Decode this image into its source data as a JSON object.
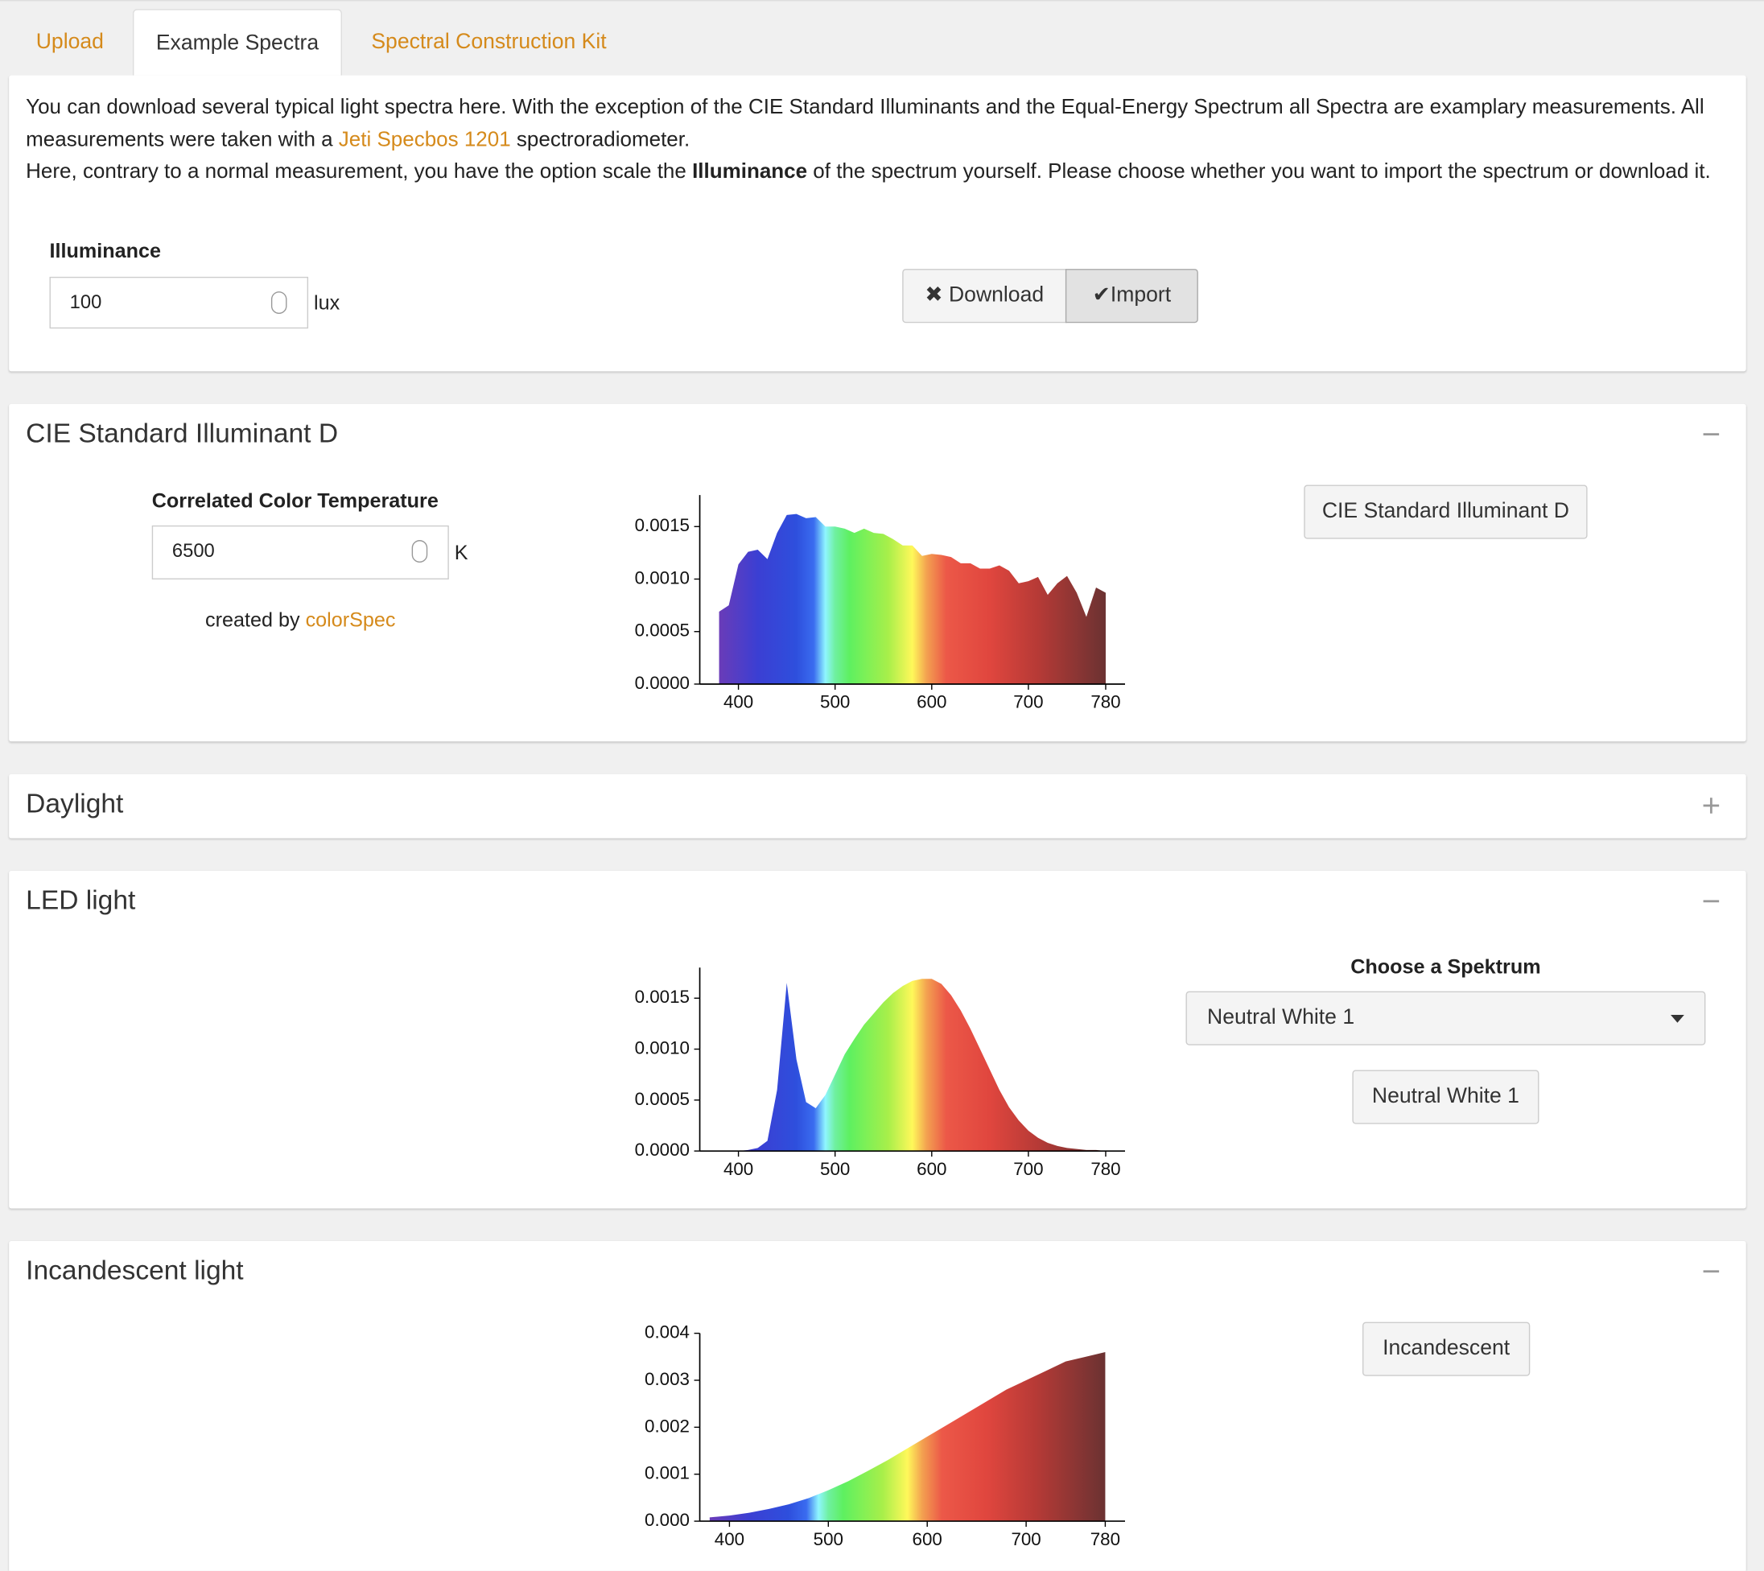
{
  "tabs": [
    "Upload",
    "Example Spectra",
    "Spectral Construction Kit"
  ],
  "intro": {
    "p1a": "You can download several typical light spectra here. With the exception of the CIE Standard Illuminants and the Equal-Energy Spectrum all Spectra are examplary measurements. All measurements were taken with a ",
    "link": "Jeti Specbos 1201",
    "p1b": " spectroradiometer.",
    "p2a": "Here, contrary to a normal measurement, you have the option scale the ",
    "bold": "Illuminance",
    "p2b": " of the spectrum yourself. Please choose whether you want to import the spectrum or download it."
  },
  "illuminance": {
    "label": "Illuminance",
    "value": "100",
    "unit": "lux"
  },
  "buttons": [
    "Download",
    "Import"
  ],
  "panels": [
    {
      "title": "CIE Standard Illuminant D",
      "cct_label": "Correlated Color Temperature",
      "cct_value": "6500",
      "cct_unit": "K",
      "credit": "created by",
      "credit_link": "colorSpec",
      "button": "CIE Standard Illuminant D",
      "chart_data": {
        "type": "area",
        "x": [
          380,
          390,
          400,
          410,
          420,
          430,
          440,
          450,
          460,
          470,
          480,
          490,
          500,
          510,
          520,
          530,
          540,
          550,
          560,
          570,
          580,
          590,
          600,
          610,
          620,
          630,
          640,
          650,
          660,
          670,
          680,
          690,
          700,
          710,
          720,
          730,
          740,
          750,
          760,
          770,
          780
        ],
        "values": [
          0.00069,
          0.00075,
          0.00114,
          0.00126,
          0.00128,
          0.00119,
          0.00144,
          0.00161,
          0.00162,
          0.00158,
          0.00159,
          0.0015,
          0.0015,
          0.00148,
          0.00144,
          0.00148,
          0.00144,
          0.00143,
          0.00138,
          0.00132,
          0.00132,
          0.00122,
          0.00124,
          0.00123,
          0.00121,
          0.00115,
          0.00115,
          0.0011,
          0.0011,
          0.00113,
          0.00108,
          0.00096,
          0.00098,
          0.00102,
          0.00085,
          0.00096,
          0.00103,
          0.00087,
          0.00064,
          0.00092,
          0.00087
        ],
        "xlim": [
          360,
          800
        ],
        "ylim": [
          0,
          0.0018
        ],
        "xticks": [
          400,
          500,
          600,
          700,
          780
        ],
        "yticks": [
          {
            "value": 0,
            "label": "0.0000"
          },
          0.0005,
          {
            "value": 0.001,
            "label": "0.0010"
          },
          0.0015
        ]
      }
    },
    {
      "title": "Daylight"
    },
    {
      "title": "LED light",
      "select_label": "Choose a Spektrum",
      "select_value": "Neutral White 1",
      "button": "Neutral White 1",
      "chart_data": {
        "type": "area",
        "x": [
          380,
          390,
          400,
          410,
          420,
          430,
          440,
          450,
          460,
          470,
          480,
          490,
          500,
          510,
          520,
          530,
          540,
          550,
          560,
          570,
          580,
          590,
          600,
          610,
          620,
          630,
          640,
          650,
          660,
          670,
          680,
          690,
          700,
          710,
          720,
          730,
          740,
          750,
          760,
          770,
          780
        ],
        "values": [
          0,
          0,
          0,
          1e-05,
          3e-05,
          0.0001,
          0.0006,
          0.00165,
          0.0009,
          0.00048,
          0.00042,
          0.00055,
          0.00075,
          0.00095,
          0.0011,
          0.00124,
          0.00135,
          0.00146,
          0.00155,
          0.00162,
          0.00167,
          0.00169,
          0.00169,
          0.00164,
          0.00153,
          0.00138,
          0.0012,
          0.001,
          0.0008,
          0.0006,
          0.00043,
          0.0003,
          0.0002,
          0.00013,
          8e-05,
          5e-05,
          3e-05,
          2e-05,
          1e-05,
          1e-05,
          0
        ],
        "xlim": [
          360,
          800
        ],
        "ylim": [
          0,
          0.0018
        ],
        "xticks": [
          400,
          500,
          600,
          700,
          780
        ],
        "yticks": [
          {
            "value": 0,
            "label": "0.0000"
          },
          0.0005,
          {
            "value": 0.001,
            "label": "0.0010"
          },
          0.0015
        ]
      }
    },
    {
      "title": "Incandescent light",
      "button": "Incandescent",
      "chart_data": {
        "type": "area",
        "x": [
          380,
          400,
          420,
          440,
          460,
          480,
          500,
          520,
          540,
          560,
          580,
          600,
          620,
          640,
          660,
          680,
          700,
          720,
          740,
          760,
          780
        ],
        "values": [
          8e-05,
          0.00012,
          0.00018,
          0.00026,
          0.00036,
          0.00049,
          0.00066,
          0.00085,
          0.00107,
          0.0013,
          0.00155,
          0.0018,
          0.00205,
          0.0023,
          0.00255,
          0.0028,
          0.003,
          0.0032,
          0.0034,
          0.0035,
          0.0036
        ],
        "xlim": [
          370,
          800
        ],
        "ylim": [
          0,
          0.004
        ],
        "xticks": [
          400,
          500,
          600,
          700,
          780
        ],
        "yticks": [
          {
            "value": 0,
            "label": "0.000"
          },
          0.001,
          0.002,
          0.003,
          0.004
        ]
      }
    }
  ]
}
